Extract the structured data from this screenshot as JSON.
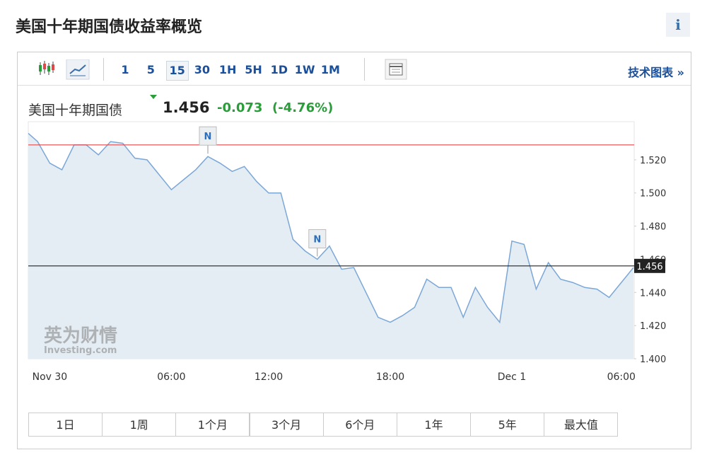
{
  "header": {
    "title": "美国十年期国债收益率概览",
    "info": "i"
  },
  "toolbar": {
    "intervals": [
      "1",
      "5",
      "15",
      "30",
      "1H",
      "5H",
      "1D",
      "1W",
      "1M"
    ],
    "selected_interval_index": 2,
    "tech_chart": "技术图表 »"
  },
  "quote": {
    "name": "美国十年期国债",
    "price": "1.456",
    "change": "-0.073",
    "change_percent": "(-4.76%)"
  },
  "ranges": [
    "1日",
    "1周",
    "1个月",
    "3个月",
    "6个月",
    "1年",
    "5年",
    "最大值"
  ],
  "chart_data": {
    "type": "line",
    "categories": [
      null,
      null,
      "Nov 30",
      null,
      null,
      null,
      null,
      null,
      null,
      null,
      null,
      null,
      "06:00",
      null,
      null,
      null,
      null,
      null,
      null,
      null,
      "12:00",
      null,
      null,
      null,
      null,
      null,
      null,
      null,
      null,
      null,
      "18:00",
      null,
      null,
      null,
      null,
      null,
      null,
      null,
      null,
      null,
      "Dec 1",
      null,
      null,
      null,
      null,
      null,
      null,
      null,
      null,
      "06:00",
      null
    ],
    "values": [
      1.536,
      1.531,
      1.518,
      1.514,
      1.529,
      1.529,
      1.523,
      1.531,
      1.53,
      1.521,
      1.52,
      1.511,
      1.502,
      1.508,
      1.514,
      1.522,
      1.518,
      1.513,
      1.516,
      1.507,
      1.5,
      1.5,
      1.472,
      1.465,
      1.46,
      1.468,
      1.454,
      1.455,
      1.44,
      1.425,
      1.422,
      1.426,
      1.431,
      1.448,
      1.443,
      1.443,
      1.425,
      1.443,
      1.431,
      1.422,
      1.471,
      1.469,
      1.442,
      1.458,
      1.448,
      1.446,
      1.443,
      1.442,
      1.437,
      1.446,
      1.455
    ],
    "color": "#7ba7d7",
    "area_color": "#e4edf4",
    "ylim": [
      1.4,
      1.543
    ],
    "yticks": [
      {
        "value": 1.4,
        "label": "1.400"
      },
      {
        "value": 1.42,
        "label": "1.420"
      },
      {
        "value": 1.44,
        "label": "1.440"
      },
      {
        "value": 1.46,
        "label": "1.460"
      },
      {
        "value": 1.48,
        "label": "1.480"
      },
      {
        "value": 1.5,
        "label": "1.500"
      },
      {
        "value": 1.52,
        "label": "1.520"
      }
    ],
    "reference_lines": [
      {
        "value": 1.529,
        "color": "#e04848"
      },
      {
        "value": 1.456,
        "color": "#222222",
        "labeled": true
      }
    ],
    "annotations": [
      {
        "index": 15,
        "label": "N"
      },
      {
        "index": 24,
        "label": "N"
      }
    ],
    "watermark": {
      "cn": "英为财情",
      "en": "Investing.com"
    }
  }
}
